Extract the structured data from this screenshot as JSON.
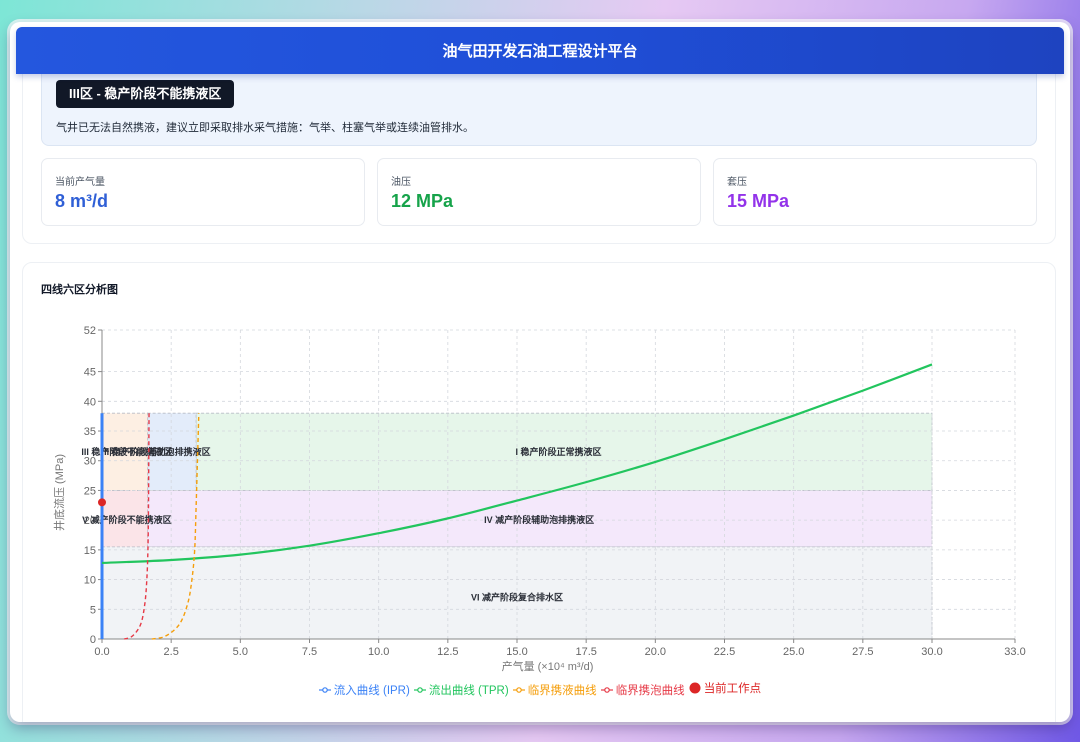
{
  "header": {
    "title": "油气田开发石油工程设计平台"
  },
  "alert": {
    "zone_badge": "III区 - 稳产阶段不能携液区",
    "message": "气井已无法自然携液，建议立即采取排水采气措施：气举、柱塞气举或连续油管排水。"
  },
  "stats": [
    {
      "label": "当前产气量",
      "value": "8 m³/d",
      "color": "#2f5fd6"
    },
    {
      "label": "油压",
      "value": "12 MPa",
      "color": "#16a34a"
    },
    {
      "label": "套压",
      "value": "15 MPa",
      "color": "#9333ea"
    }
  ],
  "chart_section": {
    "title": "四线六区分析图"
  },
  "chart_data": {
    "type": "line",
    "title": "四线六区分析图",
    "xlabel": "产气量 (×10⁴ m³/d)",
    "ylabel": "井底流压 (MPa)",
    "xlim": [
      0,
      33
    ],
    "ylim": [
      0,
      52
    ],
    "xticks": [
      "0.0",
      "2.5",
      "5.0",
      "7.5",
      "10.0",
      "12.5",
      "15.0",
      "17.5",
      "20.0",
      "22.5",
      "25.0",
      "27.5",
      "30.0",
      "33.0"
    ],
    "yticks": [
      "0",
      "5",
      "10",
      "15",
      "20",
      "25",
      "30",
      "35",
      "40",
      "45",
      "52"
    ],
    "grid": true,
    "legend_position": "bottom",
    "series": [
      {
        "name": "流入曲线 (IPR)",
        "color": "#3b82f6",
        "style": "solid",
        "x": [
          0,
          0,
          0
        ],
        "y": [
          0,
          20,
          38
        ]
      },
      {
        "name": "流出曲线 (TPR)",
        "color": "#22c55e",
        "style": "solid",
        "x": [
          0,
          2.5,
          5,
          7.5,
          10,
          12.5,
          15,
          17.5,
          20,
          22.5,
          25,
          27.5,
          30
        ],
        "y": [
          12.8,
          13.3,
          14.2,
          15.7,
          17.8,
          20.3,
          23.3,
          26.4,
          29.8,
          33.6,
          37.6,
          41.8,
          46.2
        ]
      },
      {
        "name": "临界携液曲线",
        "color": "#f59e0b",
        "style": "dashed",
        "x": [
          1.8,
          2.3,
          2.8,
          3.1,
          3.25,
          3.35,
          3.4,
          3.45,
          3.5
        ],
        "y": [
          0,
          0.5,
          2.5,
          6,
          10,
          15,
          22,
          30,
          38
        ]
      },
      {
        "name": "临界携泡曲线",
        "color": "#e63946",
        "style": "dashed",
        "x": [
          0.8,
          1.1,
          1.4,
          1.55,
          1.62,
          1.66,
          1.68,
          1.69,
          1.7
        ],
        "y": [
          0,
          0.5,
          2.5,
          6,
          10,
          15,
          22,
          30,
          38
        ]
      },
      {
        "name": "当前工作点",
        "color": "#dc2626",
        "style": "point",
        "x": [
          0
        ],
        "y": [
          23
        ]
      }
    ],
    "zones": [
      {
        "label": "I 稳产阶段正常携液区",
        "x": [
          3.4,
          30
        ],
        "y": [
          25,
          38
        ],
        "color": "#e6f6ea"
      },
      {
        "label": "II 稳产阶段辅助泡排携液区",
        "x": [
          1.65,
          3.4
        ],
        "y": [
          25,
          38
        ],
        "color": "#e3ecfa"
      },
      {
        "label": "III 稳产阶段不能携液区",
        "x": [
          0,
          1.65
        ],
        "y": [
          25,
          38
        ],
        "color": "#fdefe3"
      },
      {
        "label": "IV 减产阶段辅助泡排携液区",
        "x": [
          1.65,
          30
        ],
        "y": [
          15.5,
          25
        ],
        "color": "#f4e8fb"
      },
      {
        "label": "V 减产阶段不能携液区",
        "x": [
          0,
          1.65
        ],
        "y": [
          15.5,
          25
        ],
        "color": "#fbe4e8"
      },
      {
        "label": "VI 减产阶段复合排水区",
        "x": [
          0,
          30
        ],
        "y": [
          0,
          15.5
        ],
        "color": "#f1f3f6"
      }
    ]
  },
  "legend": [
    {
      "label": "流入曲线 (IPR)",
      "color": "#3b82f6",
      "icon": "line-circle-icon"
    },
    {
      "label": "流出曲线 (TPR)",
      "color": "#22c55e",
      "icon": "line-circle-icon"
    },
    {
      "label": "临界携液曲线",
      "color": "#f59e0b",
      "icon": "line-circle-icon"
    },
    {
      "label": "临界携泡曲线",
      "color": "#e63946",
      "icon": "line-circle-icon"
    },
    {
      "label": "当前工作点",
      "color": "#dc2626",
      "icon": "filled-circle-icon"
    }
  ]
}
